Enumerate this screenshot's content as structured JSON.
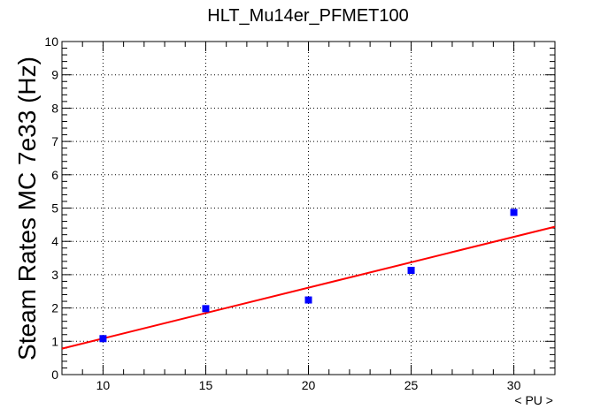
{
  "chart_data": {
    "type": "scatter",
    "title": "HLT_Mu14er_PFMET100",
    "xlabel": "< PU >",
    "ylabel": "Steam Rates MC 7e33 (Hz)",
    "xlim": [
      8,
      32
    ],
    "ylim": [
      0,
      10
    ],
    "xticks": [
      10,
      15,
      20,
      25,
      30
    ],
    "yticks": [
      0,
      1,
      2,
      3,
      4,
      5,
      6,
      7,
      8,
      9,
      10
    ],
    "grid": true,
    "series": [
      {
        "kind": "points",
        "color": "#0000ff",
        "x": [
          10,
          15,
          20,
          25,
          30
        ],
        "y": [
          1.08,
          1.98,
          2.24,
          3.13,
          4.87
        ]
      },
      {
        "kind": "fit-line",
        "color": "#ff0000",
        "x": [
          8,
          32
        ],
        "y": [
          0.78,
          4.44
        ]
      }
    ]
  }
}
